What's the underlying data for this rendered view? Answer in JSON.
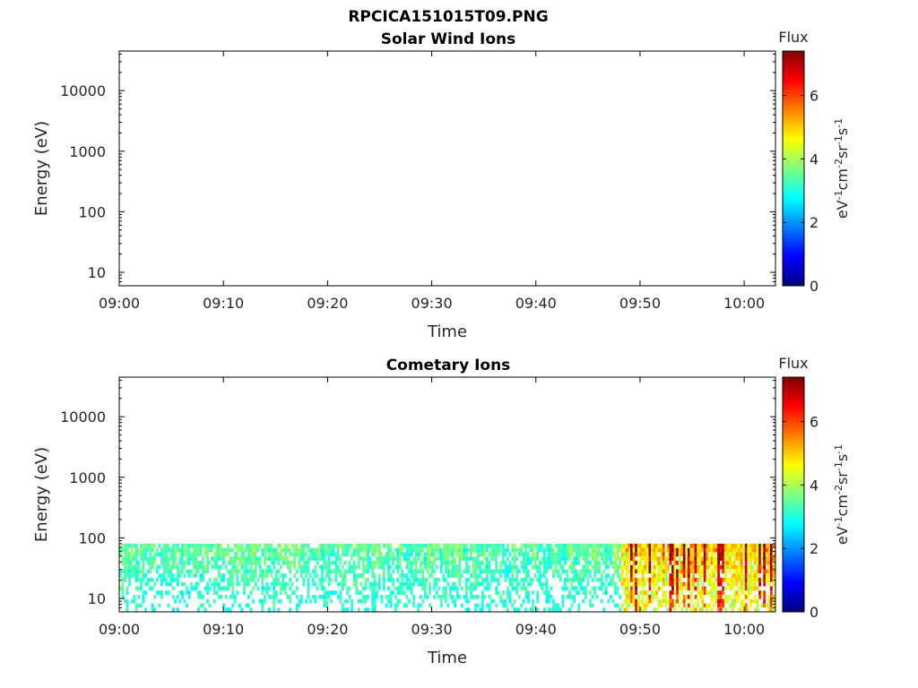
{
  "figure_title": "RPCICA151015T09.PNG",
  "chart_data": [
    {
      "type": "heatmap",
      "title": "Solar Wind Ions",
      "xlabel": "Time",
      "ylabel": "Energy (eV)",
      "x_ticks": [
        "09:00",
        "09:10",
        "09:20",
        "09:30",
        "09:40",
        "09:50",
        "10:00"
      ],
      "y_ticks": [
        "10",
        "100",
        "1000",
        "10000"
      ],
      "y_scale": "log",
      "xlim": [
        "09:00",
        "10:03"
      ],
      "ylim": [
        6,
        45000
      ],
      "colorbar": {
        "title": "Flux",
        "label": "eV-1cm-2sr-1s-1",
        "ticks": [
          "0",
          "2",
          "4",
          "6"
        ],
        "range": [
          0,
          7.4
        ],
        "colormap": "jet"
      },
      "data_summary": "no ion flux observed"
    },
    {
      "type": "heatmap",
      "title": "Cometary Ions",
      "xlabel": "Time",
      "ylabel": "Energy (eV)",
      "x_ticks": [
        "09:00",
        "09:10",
        "09:20",
        "09:30",
        "09:40",
        "09:50",
        "10:00"
      ],
      "y_ticks": [
        "10",
        "100",
        "1000",
        "10000"
      ],
      "y_scale": "log",
      "xlim": [
        "09:00",
        "10:03"
      ],
      "ylim": [
        6,
        45000
      ],
      "colorbar": {
        "title": "Flux",
        "label": "eV-1cm-2sr-1s-1",
        "ticks": [
          "0",
          "2",
          "4",
          "6"
        ],
        "range": [
          0,
          7.4
        ],
        "colormap": "jet"
      },
      "data_summary": "flux between ~6 eV and ~80 eV for whole interval; typical values 2.5-4, enhanced 5-7 after 09:48",
      "flux_energy_range": [
        6,
        80
      ],
      "segments": [
        {
          "start": "09:00",
          "end": "09:48",
          "flux_typical": [
            2.5,
            4.5
          ]
        },
        {
          "start": "09:48",
          "end": "10:03",
          "flux_typical": [
            3.5,
            7
          ]
        }
      ]
    }
  ]
}
